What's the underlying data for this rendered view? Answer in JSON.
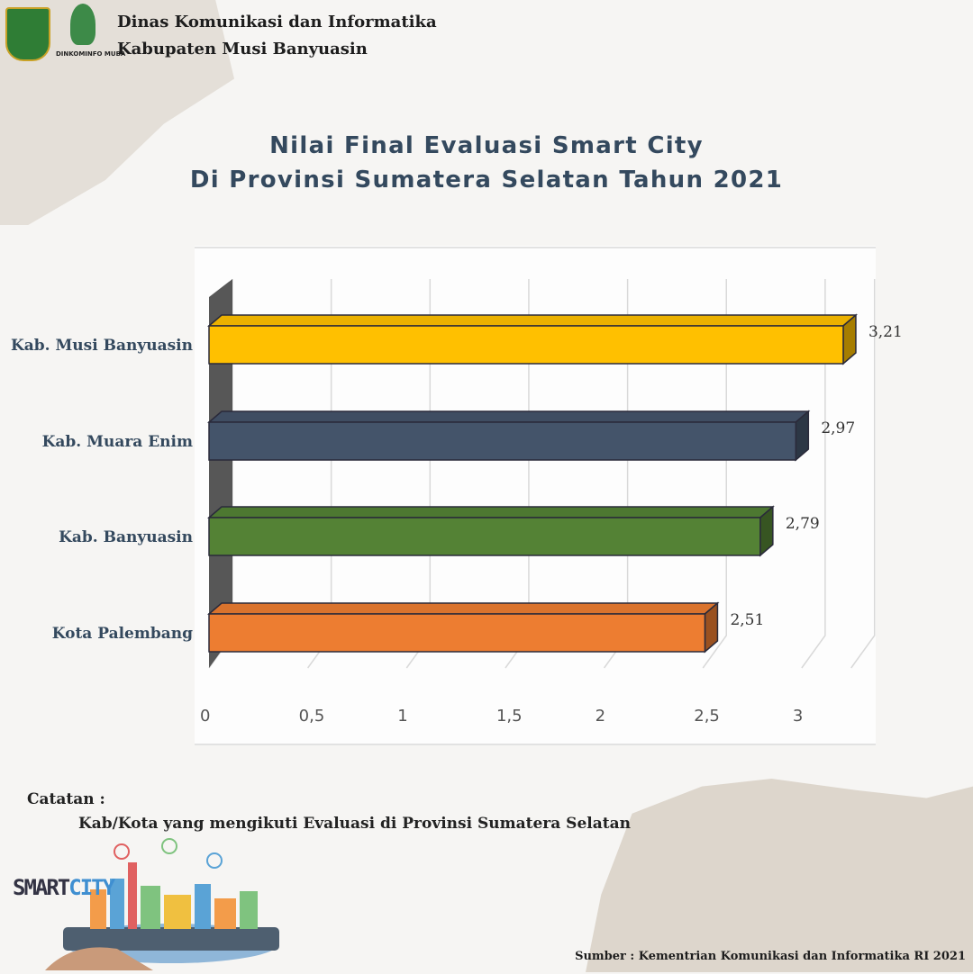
{
  "header": {
    "org_line1": "Dinas Komunikasi dan Informatika",
    "org_line2": "Kabupaten Musi Banyuasin",
    "logo_left": "crest-icon",
    "logo_right": "rocket-logo-icon",
    "logo_right_text": "DINKOMINFO MUBA"
  },
  "chart_data": {
    "type": "bar",
    "orientation": "horizontal",
    "title_line1": "Nilai Final Evaluasi Smart City",
    "title_line2": "Di Provinsi Sumatera Selatan Tahun 2021",
    "categories": [
      "Kab. Musi Banyuasin",
      "Kab. Muara Enim",
      "Kab. Banyuasin",
      "Kota Palembang"
    ],
    "values": [
      3.21,
      2.97,
      2.79,
      2.51
    ],
    "value_labels": [
      "3,21",
      "2,97",
      "2,79",
      "2,51"
    ],
    "colors": [
      "#ffc000",
      "#44546a",
      "#548235",
      "#ed7d31"
    ],
    "xlim": [
      0,
      3.25
    ],
    "x_ticks": [
      0,
      0.5,
      1,
      1.5,
      2,
      2.5,
      3
    ],
    "x_tick_labels": [
      "0",
      "0,5",
      "1",
      "1,5",
      "2",
      "2,5",
      "3"
    ],
    "grid": true,
    "style": "3d"
  },
  "note": {
    "label": "Catatan :",
    "text": "Kab/Kota yang mengikuti Evaluasi di Provinsi Sumatera Selatan"
  },
  "illustration": {
    "logo_text_a": "SMART",
    "logo_text_b": "CITY"
  },
  "source": "Sumber : Kementrian Komunikasi dan Informatika RI  2021"
}
